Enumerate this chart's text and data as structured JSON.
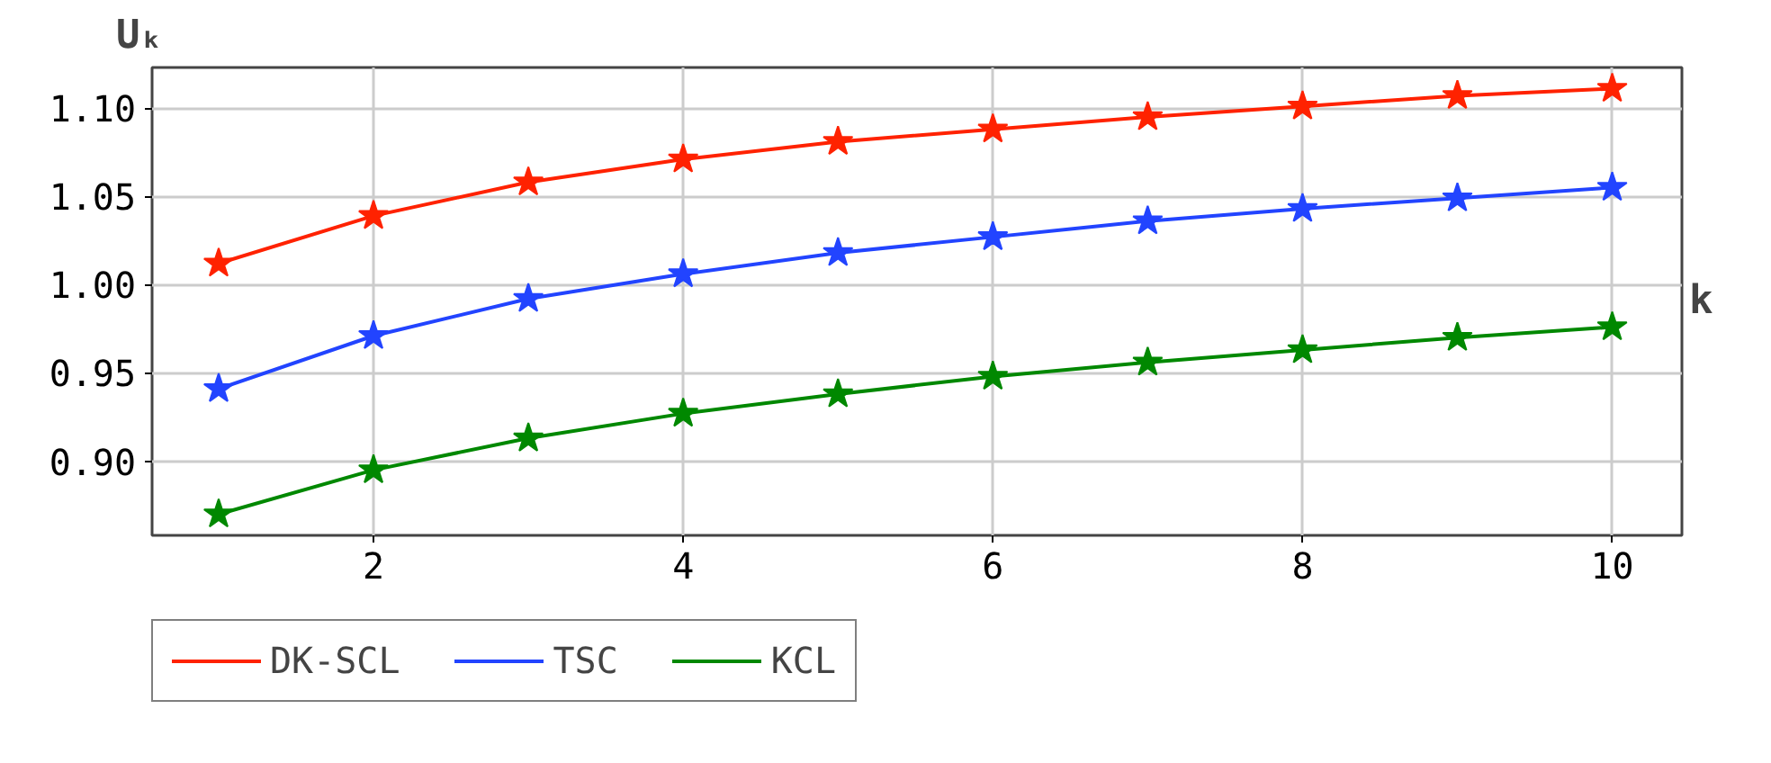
{
  "chart_data": {
    "type": "line",
    "xlabel": "k",
    "ylabel": "Uₖ",
    "x": [
      1,
      2,
      3,
      4,
      5,
      6,
      7,
      8,
      9,
      10
    ],
    "series": [
      {
        "name": "DK-SCL",
        "color": "#ff2200",
        "values": [
          1.012,
          1.039,
          1.058,
          1.071,
          1.081,
          1.088,
          1.095,
          1.101,
          1.107,
          1.111
        ]
      },
      {
        "name": "TSC",
        "color": "#2244ff",
        "values": [
          0.941,
          0.971,
          0.992,
          1.006,
          1.018,
          1.027,
          1.036,
          1.043,
          1.049,
          1.055
        ]
      },
      {
        "name": "KCL",
        "color": "#008800",
        "values": [
          0.87,
          0.895,
          0.913,
          0.927,
          0.938,
          0.948,
          0.956,
          0.963,
          0.97,
          0.976
        ]
      }
    ],
    "xlim": [
      0.57,
      10.45
    ],
    "ylim": [
      0.858,
      1.123
    ],
    "xticks": [
      2,
      4,
      6,
      8,
      10
    ],
    "yticks": [
      {
        "value": 0.9,
        "label": "0.90"
      },
      {
        "value": 0.95,
        "label": "0.95"
      },
      {
        "value": 1.0,
        "label": "1.00"
      },
      {
        "value": 1.05,
        "label": "1.05"
      },
      {
        "value": 1.1,
        "label": "1.10"
      }
    ],
    "grid": true,
    "legend": "bottom",
    "marker": "star",
    "line_style": "solid"
  }
}
